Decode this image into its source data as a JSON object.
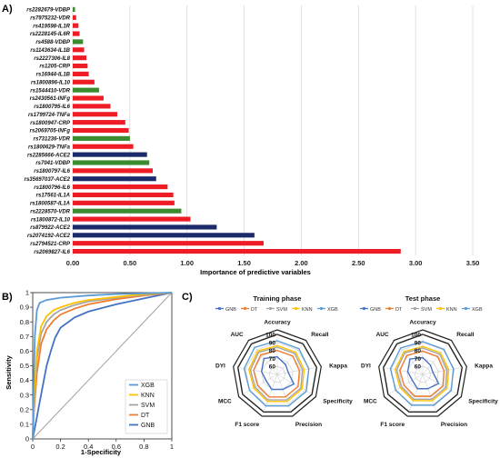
{
  "panels": {
    "a_label": "A)",
    "b_label": "B)",
    "c_label": "C)"
  },
  "chart_data": [
    {
      "type": "bar",
      "orientation": "horizontal",
      "xlabel": "Importance of predictive variables",
      "xlim": [
        0,
        3.5
      ],
      "xticks": [
        "0.00",
        "0.50",
        "1.00",
        "1.50",
        "2.00",
        "2.50",
        "3.00",
        "3.50"
      ],
      "grid": true,
      "colors": {
        "red": "#ee1c25",
        "green": "#3a8c2f",
        "navy": "#1b2a6b"
      },
      "categories": [
        "rs2282679-VDBP",
        "rs7975232-VDR",
        "rs419598-IL1R",
        "rs2228145-IL6R",
        "rs4588-VDBP",
        "rs1143634-IL1B",
        "rs2227306-IL8",
        "rs1205-CRP",
        "rs16944-IL1B",
        "rs1800896-IL10",
        "rs1544410-VDR",
        "rs2430561-INFg",
        "rs1800795-IL6",
        "rs1799724-TNFa",
        "rs1800947-CRP",
        "rs2069705-INFg",
        "rs731236-VDR",
        "rs1800629-TNFa",
        "rs2285666-ACE2",
        "rs7041-VDBP",
        "rs1800797-IL6",
        "rs35697037-ACE2",
        "rs1800796-IL6",
        "rs17561-IL1A",
        "rs1800587-IL1A",
        "rs2228570-VDR",
        "rs1800872-IL10",
        "rs879922-ACE2",
        "rs2074192-ACE2",
        "rs2794521-CRP",
        "rs2069827-IL6"
      ],
      "values": [
        0.02,
        0.03,
        0.05,
        0.06,
        0.09,
        0.1,
        0.12,
        0.13,
        0.14,
        0.19,
        0.23,
        0.27,
        0.33,
        0.39,
        0.46,
        0.49,
        0.5,
        0.53,
        0.65,
        0.67,
        0.7,
        0.73,
        0.83,
        0.88,
        0.89,
        0.95,
        1.03,
        1.26,
        1.59,
        1.67,
        2.87
      ],
      "bar_colors": [
        "green",
        "red",
        "red",
        "red",
        "green",
        "red",
        "red",
        "red",
        "red",
        "red",
        "green",
        "red",
        "red",
        "red",
        "red",
        "red",
        "green",
        "red",
        "navy",
        "green",
        "red",
        "navy",
        "red",
        "red",
        "red",
        "green",
        "red",
        "navy",
        "navy",
        "red",
        "red"
      ]
    },
    {
      "type": "line",
      "xlabel": "1-Specificity",
      "ylabel": "Sensitivity",
      "xlim": [
        0,
        1
      ],
      "ylim": [
        0,
        1
      ],
      "xticks": [
        "0",
        "0.2",
        "0.4",
        "0.6",
        "0.8",
        "1"
      ],
      "yticks": [
        "0",
        "0.1",
        "0.2",
        "0.3",
        "0.4",
        "0.5",
        "0.6",
        "0.7",
        "0.8",
        "0.9",
        "1"
      ],
      "legend_position": "bottom-right",
      "series": [
        {
          "name": "XGB",
          "color": "#5b9bd5",
          "points": [
            [
              0,
              0
            ],
            [
              0.005,
              0.3
            ],
            [
              0.015,
              0.7
            ],
            [
              0.03,
              0.88
            ],
            [
              0.05,
              0.93
            ],
            [
              0.1,
              0.95
            ],
            [
              0.2,
              0.965
            ],
            [
              0.4,
              0.98
            ],
            [
              0.6,
              0.99
            ],
            [
              0.8,
              0.995
            ],
            [
              1,
              1
            ]
          ]
        },
        {
          "name": "KNN",
          "color": "#ffc000",
          "points": [
            [
              0,
              0
            ],
            [
              0.01,
              0.3
            ],
            [
              0.03,
              0.6
            ],
            [
              0.06,
              0.77
            ],
            [
              0.1,
              0.84
            ],
            [
              0.15,
              0.88
            ],
            [
              0.2,
              0.9
            ],
            [
              0.3,
              0.93
            ],
            [
              0.4,
              0.95
            ],
            [
              0.6,
              0.97
            ],
            [
              0.8,
              0.99
            ],
            [
              1,
              1
            ]
          ]
        },
        {
          "name": "SVM",
          "color": "#a5a5a5",
          "points": [
            [
              0,
              0
            ],
            [
              0.01,
              0.25
            ],
            [
              0.03,
              0.55
            ],
            [
              0.06,
              0.72
            ],
            [
              0.1,
              0.8
            ],
            [
              0.15,
              0.85
            ],
            [
              0.2,
              0.88
            ],
            [
              0.3,
              0.915
            ],
            [
              0.4,
              0.94
            ],
            [
              0.6,
              0.965
            ],
            [
              0.8,
              0.985
            ],
            [
              1,
              1
            ]
          ]
        },
        {
          "name": "DT",
          "color": "#ed7d31",
          "points": [
            [
              0,
              0
            ],
            [
              0.01,
              0.2
            ],
            [
              0.03,
              0.45
            ],
            [
              0.06,
              0.65
            ],
            [
              0.1,
              0.75
            ],
            [
              0.15,
              0.81
            ],
            [
              0.2,
              0.85
            ],
            [
              0.3,
              0.89
            ],
            [
              0.4,
              0.92
            ],
            [
              0.6,
              0.955
            ],
            [
              0.8,
              0.98
            ],
            [
              1,
              1
            ]
          ]
        },
        {
          "name": "GNB",
          "color": "#4472c4",
          "points": [
            [
              0,
              0
            ],
            [
              0.02,
              0.1
            ],
            [
              0.05,
              0.25
            ],
            [
              0.08,
              0.4
            ],
            [
              0.1,
              0.5
            ],
            [
              0.13,
              0.6
            ],
            [
              0.16,
              0.69
            ],
            [
              0.2,
              0.76
            ],
            [
              0.3,
              0.83
            ],
            [
              0.4,
              0.87
            ],
            [
              0.6,
              0.92
            ],
            [
              0.8,
              0.96
            ],
            [
              1,
              1
            ]
          ]
        },
        {
          "name": "",
          "color": "#a0a0a0",
          "points": [
            [
              0,
              0
            ],
            [
              1,
              1
            ]
          ]
        }
      ]
    },
    {
      "type": "radar",
      "title": "Training phase",
      "axes": [
        "Accuracy",
        "Recall",
        "Kappa",
        "Specificity",
        "Precision",
        "F1 score",
        "MCC",
        "DYI",
        "AUC"
      ],
      "rlim": [
        50,
        100
      ],
      "ticks": [
        "60",
        "70",
        "80",
        "90",
        "100"
      ],
      "legend_position": "top",
      "series": [
        {
          "name": "GNB",
          "color": "#4472c4",
          "values": [
            72,
            66,
            64,
            74,
            70,
            70,
            66,
            70,
            76
          ]
        },
        {
          "name": "DT",
          "color": "#ed7d31",
          "values": [
            80,
            80,
            78,
            80,
            80,
            80,
            78,
            80,
            82
          ]
        },
        {
          "name": "SVM",
          "color": "#a5a5a5",
          "values": [
            84,
            84,
            82,
            84,
            84,
            84,
            82,
            84,
            86
          ]
        },
        {
          "name": "KNN",
          "color": "#ffc000",
          "values": [
            86,
            86,
            84,
            86,
            86,
            86,
            84,
            86,
            88
          ]
        },
        {
          "name": "XGB",
          "color": "#5b9bd5",
          "values": [
            92,
            92,
            90,
            92,
            92,
            92,
            90,
            92,
            94
          ]
        }
      ]
    },
    {
      "type": "radar",
      "title": "Test phase",
      "axes": [
        "Accuracy",
        "Recall",
        "Kappa",
        "Specificity",
        "Precision",
        "F1 score",
        "MCC",
        "DYI",
        "AUC"
      ],
      "rlim": [
        50,
        100
      ],
      "ticks": [
        "60",
        "70",
        "80",
        "90",
        "100"
      ],
      "legend_position": "top",
      "series": [
        {
          "name": "GNB",
          "color": "#4472c4",
          "values": [
            71,
            65,
            63,
            73,
            69,
            69,
            65,
            69,
            75
          ]
        },
        {
          "name": "DT",
          "color": "#ed7d31",
          "values": [
            79,
            79,
            77,
            79,
            79,
            79,
            77,
            79,
            81
          ]
        },
        {
          "name": "SVM",
          "color": "#a5a5a5",
          "values": [
            83,
            83,
            81,
            83,
            83,
            83,
            81,
            83,
            85
          ]
        },
        {
          "name": "KNN",
          "color": "#ffc000",
          "values": [
            85,
            85,
            83,
            85,
            85,
            85,
            83,
            85,
            87
          ]
        },
        {
          "name": "XGB",
          "color": "#5b9bd5",
          "values": [
            91,
            91,
            89,
            91,
            91,
            91,
            89,
            91,
            93
          ]
        }
      ]
    }
  ]
}
